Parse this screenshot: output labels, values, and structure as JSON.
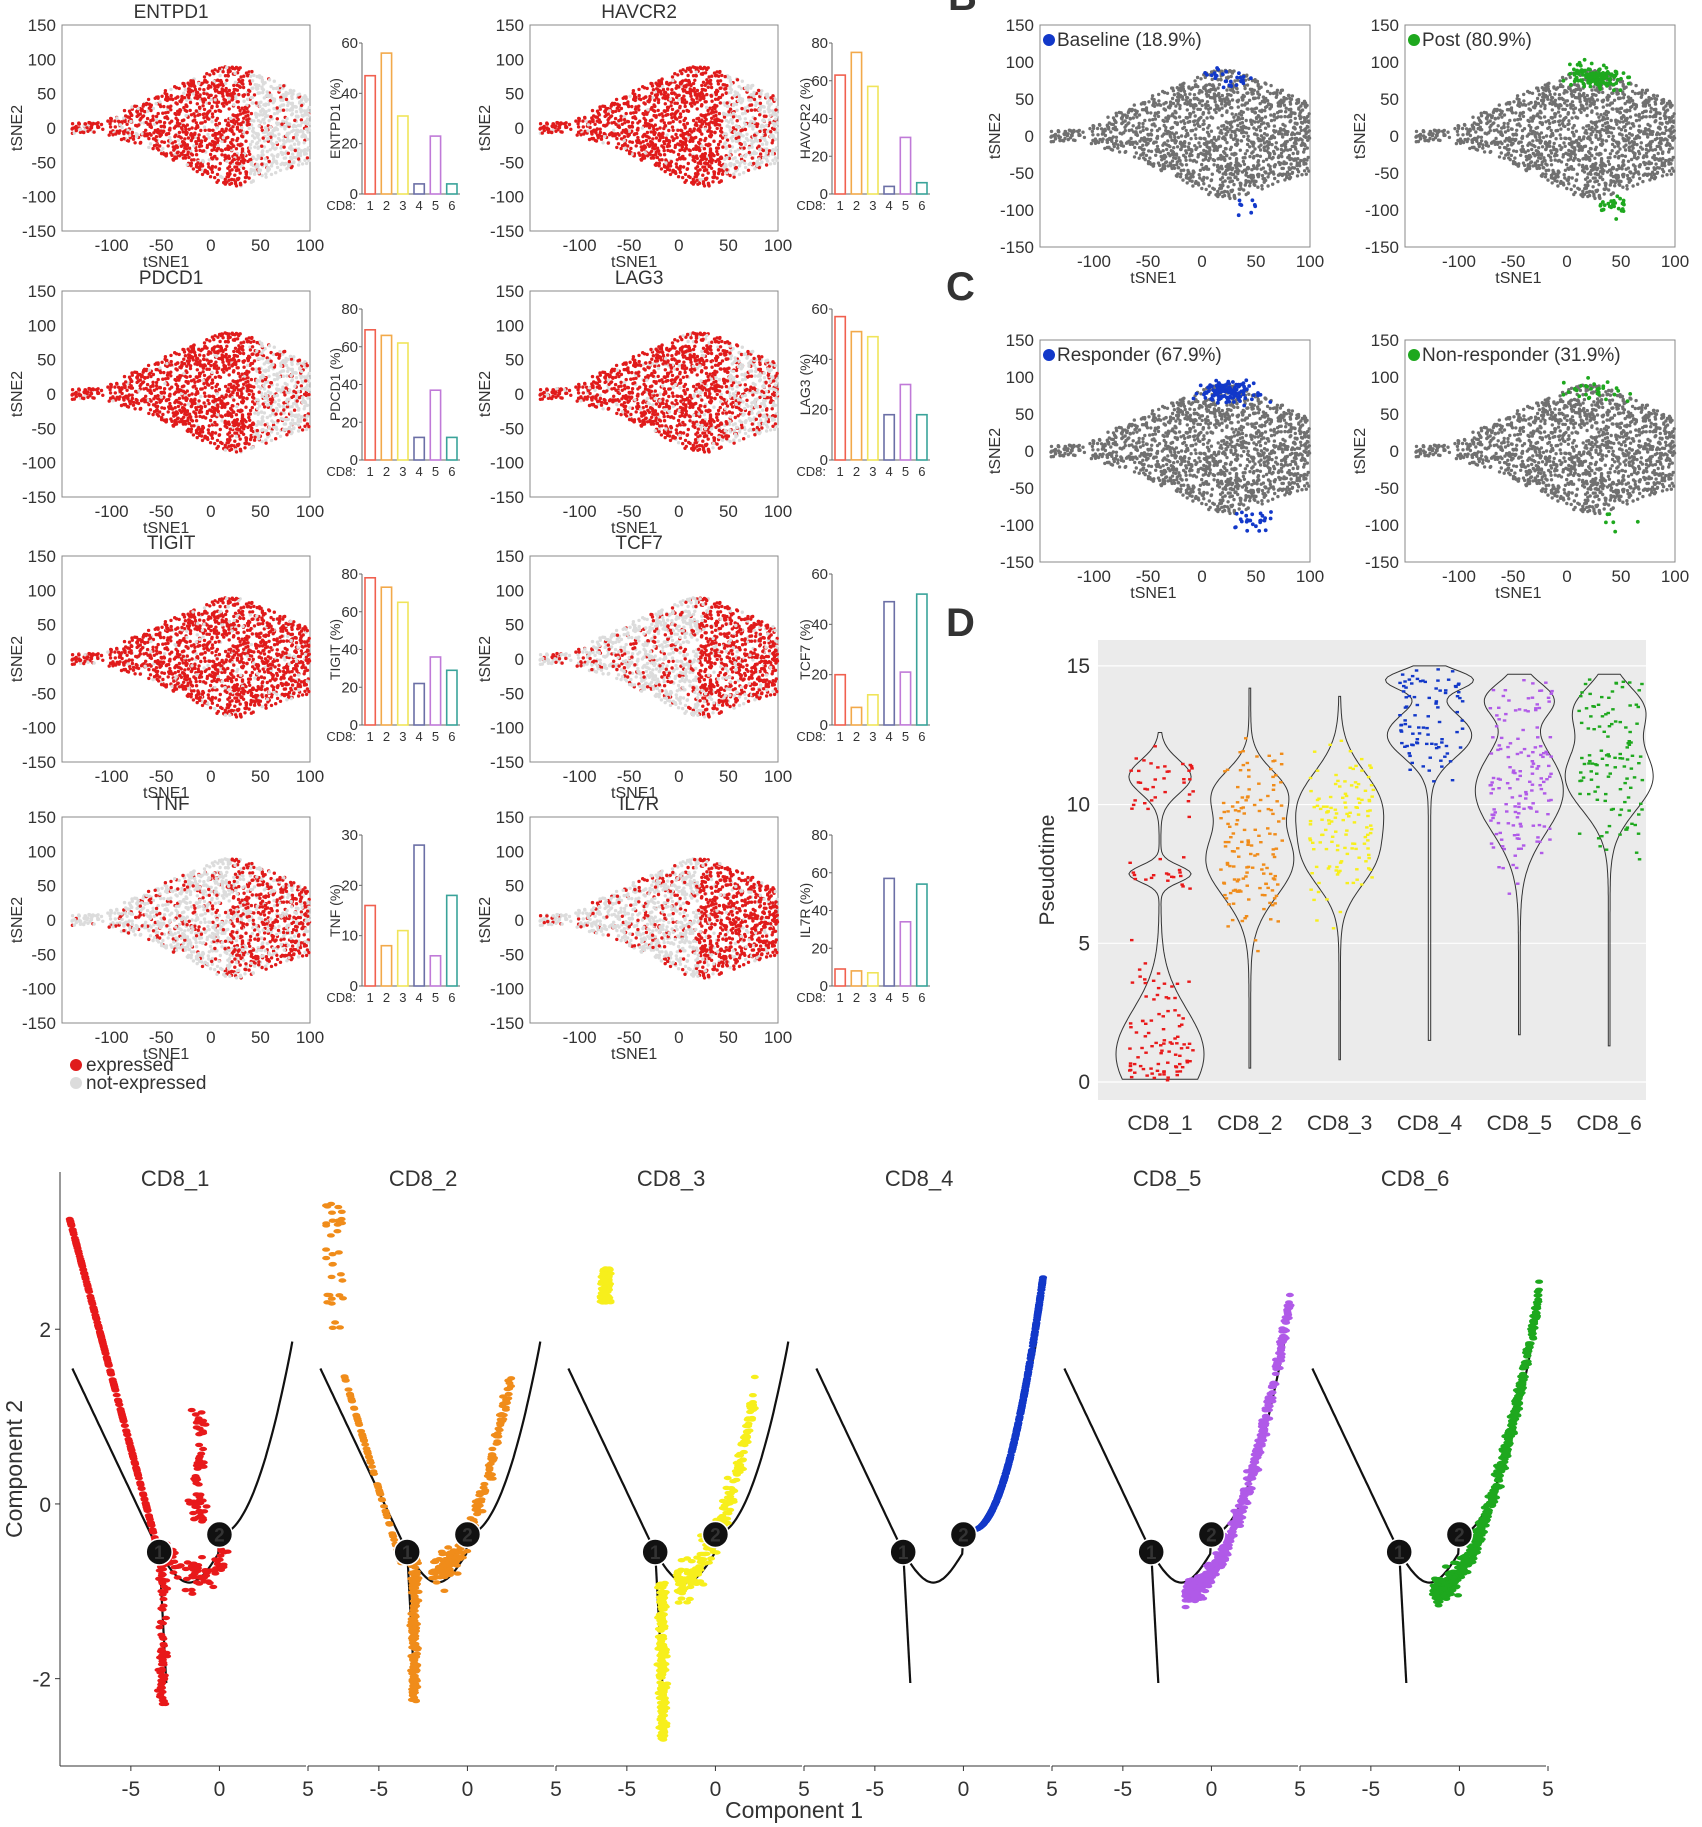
{
  "figure": {
    "panel_letters": [
      "B",
      "C",
      "D"
    ],
    "legend": {
      "expressed": "expressed",
      "not_expressed": "not-expressed"
    }
  },
  "colors": {
    "expressed": "#e01b1b",
    "not_expressed": "#dcdcdc",
    "grey_cells": "#707070",
    "CD8_1": "#e8191a",
    "CD8_2": "#f08c1a",
    "CD8_3": "#f7ef1c",
    "CD8_4": "#1238c9",
    "CD8_5": "#b05ae8",
    "CD8_6": "#1ea81e",
    "green_label": "#1fa21f",
    "blue_label": "#1036c4"
  },
  "chart_data": [
    {
      "id": "A-tsne",
      "type": "scatter",
      "panels": [
        "ENTPD1",
        "HAVCR2",
        "PDCD1",
        "LAG3",
        "TIGIT",
        "TCF7",
        "TNF",
        "IL7R"
      ],
      "xlabel": "tSNE1",
      "ylabel": "tSNE2",
      "xticks": [
        "-100",
        "-50",
        "0",
        "50",
        "100"
      ],
      "yticks": [
        "150",
        "100",
        "50",
        "0",
        "-50",
        "-100",
        "-150"
      ],
      "xlim": [
        -150,
        100
      ],
      "ylim": [
        -150,
        150
      ],
      "legend": [
        "expressed",
        "not-expressed"
      ]
    },
    {
      "id": "A-bars",
      "type": "bar",
      "categories": [
        "1",
        "2",
        "3",
        "4",
        "5",
        "6"
      ],
      "category_prefix": "CD8:",
      "bar_colors": [
        "#f0604f",
        "#f2a94a",
        "#f0e45a",
        "#6b6fa6",
        "#c07ad8",
        "#3aa39a"
      ],
      "series": [
        {
          "name": "ENTPD1",
          "ylabel": "ENTPD1 (%)",
          "ylim": [
            0,
            60
          ],
          "yticks": [
            "0",
            "20",
            "40",
            "60"
          ],
          "values": [
            47,
            56,
            31,
            4,
            23,
            4
          ]
        },
        {
          "name": "HAVCR2",
          "ylabel": "HAVCR2 (%)",
          "ylim": [
            0,
            80
          ],
          "yticks": [
            "0",
            "20",
            "40",
            "60",
            "80"
          ],
          "values": [
            63,
            75,
            57,
            4,
            30,
            6
          ]
        },
        {
          "name": "PDCD1",
          "ylabel": "PDCD1 (%)",
          "ylim": [
            0,
            80
          ],
          "yticks": [
            "0",
            "20",
            "40",
            "60",
            "80"
          ],
          "values": [
            69,
            66,
            62,
            12,
            37,
            12
          ]
        },
        {
          "name": "LAG3",
          "ylabel": "LAG3 (%)",
          "ylim": [
            0,
            60
          ],
          "yticks": [
            "0",
            "20",
            "40",
            "60"
          ],
          "values": [
            57,
            51,
            49,
            18,
            30,
            18
          ]
        },
        {
          "name": "TIGIT",
          "ylabel": "TIGIT (%)",
          "ylim": [
            0,
            80
          ],
          "yticks": [
            "0",
            "20",
            "40",
            "60",
            "80"
          ],
          "values": [
            78,
            73,
            65,
            22,
            36,
            29
          ]
        },
        {
          "name": "TCF7",
          "ylabel": "TCF7 (%)",
          "ylim": [
            0,
            60
          ],
          "yticks": [
            "0",
            "20",
            "40",
            "60"
          ],
          "values": [
            20,
            7,
            12,
            49,
            21,
            52
          ]
        },
        {
          "name": "TNF",
          "ylabel": "TNF (%)",
          "ylim": [
            0,
            30
          ],
          "yticks": [
            "0",
            "10",
            "20",
            "30"
          ],
          "values": [
            16,
            8,
            11,
            28,
            6,
            18
          ]
        },
        {
          "name": "IL7R",
          "ylabel": "IL7R (%)",
          "ylim": [
            0,
            80
          ],
          "yticks": [
            "0",
            "20",
            "40",
            "60",
            "80"
          ],
          "values": [
            9,
            8,
            7,
            57,
            34,
            54
          ]
        }
      ]
    },
    {
      "id": "B-C",
      "type": "scatter",
      "xlabel": "tSNE1",
      "ylabel": "tSNE2",
      "xticks": [
        "-100",
        "-50",
        "0",
        "50",
        "100"
      ],
      "yticks": [
        "150",
        "100",
        "50",
        "0",
        "-50",
        "-100",
        "-150"
      ],
      "panels": [
        {
          "label": "Baseline (18.9%)",
          "color": "blue",
          "highlight": "sparse"
        },
        {
          "label": "Post (80.9%)",
          "color": "green",
          "highlight": "dense"
        },
        {
          "label": "Responder (67.9%)",
          "color": "blue",
          "highlight": "dense"
        },
        {
          "label": "Non-responder (31.9%)",
          "color": "green",
          "highlight": "sparse"
        }
      ]
    },
    {
      "id": "D",
      "type": "violin",
      "ylabel": "Pseudotime",
      "ylim": [
        0,
        15.5
      ],
      "yticks": [
        "0",
        "5",
        "10",
        "15"
      ],
      "categories": [
        "CD8_1",
        "CD8_2",
        "CD8_3",
        "CD8_4",
        "CD8_5",
        "CD8_6"
      ],
      "series": [
        {
          "name": "CD8_1",
          "min": 0.1,
          "max": 12.6,
          "modes": [
            [
              1.0,
              1.6
            ],
            [
              11,
              0.6
            ],
            [
              7.5,
              0.3
            ]
          ]
        },
        {
          "name": "CD8_2",
          "min": 0.5,
          "max": 14.2,
          "modes": [
            [
              8.0,
              1.3
            ],
            [
              10.5,
              0.8
            ]
          ]
        },
        {
          "name": "CD8_3",
          "min": 0.8,
          "max": 13.9,
          "modes": [
            [
              7.9,
              1.0
            ],
            [
              10,
              1.2
            ]
          ]
        },
        {
          "name": "CD8_4",
          "min": 1.5,
          "max": 15.0,
          "modes": [
            [
              14.5,
              0.35
            ],
            [
              12.5,
              0.8
            ]
          ]
        },
        {
          "name": "CD8_5",
          "min": 1.7,
          "max": 14.7,
          "modes": [
            [
              13.8,
              0.6
            ],
            [
              10.5,
              1.5
            ]
          ]
        },
        {
          "name": "CD8_6",
          "min": 1.3,
          "max": 14.7,
          "modes": [
            [
              13.5,
              0.8
            ],
            [
              11.0,
              1.2
            ]
          ]
        }
      ]
    },
    {
      "id": "E",
      "type": "scatter",
      "xlabel": "Component 1",
      "ylabel": "Component 2",
      "xticks": [
        "-5",
        "0",
        "5"
      ],
      "yticks": [
        "2",
        "0",
        "-2"
      ],
      "xlim": [
        -9,
        5
      ],
      "ylim": [
        -3,
        3.8
      ],
      "branch_labels": [
        "1",
        "2"
      ],
      "panels": [
        "CD8_1",
        "CD8_2",
        "CD8_3",
        "CD8_4",
        "CD8_5",
        "CD8_6"
      ]
    }
  ]
}
